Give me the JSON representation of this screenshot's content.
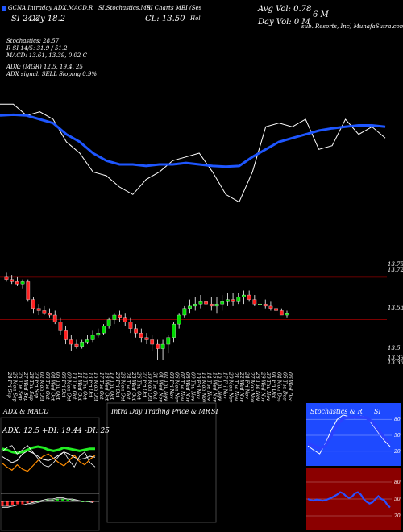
{
  "header": {
    "line1": [
      "GCNA Intraday ADX,MACD,R",
      "SI,Stochastics,MR",
      "SI Charts MBI",
      "(Ses",
      "Avg Vol: 0.78",
      "6  M"
    ],
    "line2": [
      "SI 24.7",
      "Day   18.2",
      "CL: 13.50",
      "Day Vol: 0  M"
    ],
    "company": "sub. Resorts, Inc) MunafaSutra.com",
    "ticker_suffix": "Hol"
  },
  "stats": {
    "stochastics": "Stochastics: 28.57",
    "r": "R         SI 14/5: 31.9 / 51.2",
    "macd": "MACD: 13.61,  13.39,  0.02  C",
    "adx": "ADX:                      (MGR) 12.5,  19.4,  25",
    "adx_signal": "ADX  signal: SELL  Sloping  0.9%"
  },
  "price_axis": [
    "13.75",
    "13.72",
    "13.53",
    "13.5",
    "13.39",
    "13.35"
  ],
  "chart_data": [
    {
      "type": "line",
      "name": "price-with-moving-average",
      "series": [
        {
          "values": [
            14.2,
            14.2,
            14.05,
            14.1,
            14.0,
            13.7,
            13.55,
            13.3,
            13.25,
            13.1,
            13.0,
            13.2,
            13.3,
            13.45,
            13.5,
            13.55,
            13.3,
            13.0,
            12.9,
            13.3,
            13.9,
            13.95,
            13.9,
            14.0,
            13.6,
            13.65,
            14.0,
            13.8,
            13.9,
            13.75
          ]
        },
        {
          "values": [
            14.05,
            14.06,
            14.05,
            14.0,
            13.95,
            13.8,
            13.7,
            13.55,
            13.45,
            13.4,
            13.4,
            13.38,
            13.4,
            13.4,
            13.42,
            13.4,
            13.38,
            13.37,
            13.38,
            13.5,
            13.6,
            13.7,
            13.75,
            13.8,
            13.85,
            13.88,
            13.9,
            13.92,
            13.92,
            13.9
          ]
        }
      ]
    },
    {
      "type": "candlestick",
      "name": "daily-candles",
      "categories": [
        "24 Fri Sep",
        "25 Mon Sep",
        "26 Tue Sep",
        "27 Wed Sep",
        "28 Thu Sep",
        "29 Fri Sep",
        "02 Mon Oct",
        "03 Tue Oct",
        "04 Wed Oct",
        "05 Thu Oct",
        "06 Fri Oct",
        "09 Mon Oct",
        "10 Tue Oct",
        "11 Wed Oct",
        "12 Thu Oct",
        "13 Fri Oct",
        "16 Mon Oct",
        "17 Tue Oct",
        "18 Wed Oct",
        "19 Thu Oct",
        "20 Fri Oct",
        "23 Mon Oct",
        "24 Tue Oct",
        "25 Wed Oct",
        "26 Thu Oct",
        "27 Fri Oct",
        "30 Mon Oct",
        "31 Tue Oct",
        "01 Wed Nov",
        "02 Thu Nov",
        "03 Fri Nov",
        "06 Mon Nov",
        "07 Tue Nov",
        "08 Wed Nov",
        "09 Thu Nov",
        "10 Fri Nov",
        "13 Mon Nov",
        "14 Tue Nov",
        "15 Wed Nov",
        "16 Thu Nov",
        "17 Fri Nov",
        "20 Mon Nov",
        "21 Tue Nov",
        "22 Wed Nov",
        "24 Fri Nov",
        "27 Mon Nov",
        "28 Tue Nov",
        "29 Wed Nov",
        "30 Thu Nov",
        "01 Fri Dec",
        "04 Mon Dec",
        "05 Tue Dec",
        "06 Wed Dec"
      ],
      "o": [
        13.72,
        13.71,
        13.7,
        13.69,
        13.7,
        13.62,
        13.58,
        13.57,
        13.56,
        13.55,
        13.52,
        13.48,
        13.44,
        13.42,
        13.41,
        13.43,
        13.44,
        13.46,
        13.47,
        13.5,
        13.53,
        13.55,
        13.54,
        13.52,
        13.49,
        13.47,
        13.45,
        13.44,
        13.42,
        13.4,
        13.42,
        13.45,
        13.51,
        13.55,
        13.58,
        13.59,
        13.6,
        13.61,
        13.6,
        13.59,
        13.6,
        13.61,
        13.62,
        13.61,
        13.63,
        13.64,
        13.62,
        13.6,
        13.6,
        13.59,
        13.58,
        13.57,
        13.55
      ],
      "h": [
        13.74,
        13.73,
        13.72,
        13.71,
        13.71,
        13.63,
        13.6,
        13.59,
        13.58,
        13.57,
        13.54,
        13.5,
        13.46,
        13.44,
        13.44,
        13.46,
        13.48,
        13.49,
        13.51,
        13.54,
        13.56,
        13.57,
        13.56,
        13.54,
        13.51,
        13.49,
        13.47,
        13.46,
        13.44,
        13.44,
        13.46,
        13.52,
        13.56,
        13.59,
        13.62,
        13.63,
        13.64,
        13.64,
        13.63,
        13.63,
        13.64,
        13.65,
        13.65,
        13.65,
        13.66,
        13.66,
        13.64,
        13.62,
        13.62,
        13.61,
        13.6,
        13.58,
        13.57
      ],
      "l": [
        13.7,
        13.69,
        13.68,
        13.67,
        13.61,
        13.56,
        13.55,
        13.55,
        13.54,
        13.51,
        13.46,
        13.42,
        13.39,
        13.4,
        13.4,
        13.42,
        13.43,
        13.45,
        13.46,
        13.49,
        13.51,
        13.52,
        13.5,
        13.47,
        13.45,
        13.43,
        13.42,
        13.39,
        13.35,
        13.35,
        13.38,
        13.43,
        13.49,
        13.54,
        13.56,
        13.57,
        13.58,
        13.58,
        13.57,
        13.56,
        13.57,
        13.59,
        13.59,
        13.6,
        13.6,
        13.61,
        13.59,
        13.58,
        13.58,
        13.57,
        13.56,
        13.55,
        13.54
      ],
      "c": [
        13.71,
        13.7,
        13.69,
        13.7,
        13.62,
        13.58,
        13.57,
        13.56,
        13.55,
        13.52,
        13.48,
        13.44,
        13.42,
        13.41,
        13.43,
        13.44,
        13.46,
        13.47,
        13.5,
        13.53,
        13.55,
        13.54,
        13.52,
        13.49,
        13.47,
        13.45,
        13.44,
        13.42,
        13.4,
        13.42,
        13.45,
        13.51,
        13.55,
        13.58,
        13.59,
        13.6,
        13.61,
        13.6,
        13.59,
        13.6,
        13.61,
        13.62,
        13.61,
        13.63,
        13.64,
        13.62,
        13.6,
        13.6,
        13.59,
        13.58,
        13.57,
        13.55,
        13.56
      ]
    },
    {
      "type": "line",
      "title": "ADX  & MACD",
      "subtitle": "ADX: 12.5  +DI: 19.44  -DI: 25",
      "series": [
        {
          "values": [
            18,
            15,
            12,
            14,
            20,
            23,
            21,
            18,
            15,
            14,
            16,
            19,
            22,
            20,
            17,
            15,
            16,
            18,
            17
          ]
        },
        {
          "values": [
            25,
            24,
            22,
            21,
            22,
            24,
            26,
            27,
            26,
            24,
            23,
            24,
            26,
            25,
            24,
            23,
            24,
            25,
            25
          ]
        },
        {
          "values": [
            12,
            8,
            5,
            10,
            6,
            4,
            9,
            14,
            18,
            20,
            16,
            12,
            9,
            14,
            19,
            13,
            10,
            15,
            19
          ]
        },
        {
          "values": [
            22,
            26,
            28,
            20,
            24,
            28,
            22,
            16,
            10,
            8,
            12,
            18,
            22,
            14,
            8,
            18,
            22,
            12,
            8
          ]
        }
      ]
    },
    {
      "type": "line",
      "name": "macd",
      "series": [
        {
          "values": [
            -5,
            -5,
            -4,
            -3,
            -3,
            -2,
            -1,
            0,
            1,
            2,
            2,
            3,
            3,
            2,
            2,
            1,
            0,
            0,
            -1
          ]
        },
        {
          "values": [
            -4,
            -4,
            -4,
            -3,
            -3,
            -2,
            -2,
            -1,
            0,
            1,
            1,
            2,
            2,
            2,
            1,
            1,
            0,
            0,
            -1
          ]
        }
      ]
    },
    {
      "type": "area",
      "title": "Intra  Day Trading Price  & MR",
      "title_suffix": "SI"
    },
    {
      "type": "line",
      "title": "Stochastics & R",
      "title_suffix": "SI",
      "yticks": [
        "80",
        "50",
        "20"
      ],
      "series": [
        {
          "values": [
            30,
            22,
            15,
            35,
            60,
            80,
            88,
            85,
            82,
            86,
            84,
            70,
            55,
            40,
            29
          ]
        },
        {
          "values": [
            35,
            30,
            25,
            30,
            50,
            70,
            82,
            84,
            84,
            84,
            83,
            75,
            60,
            45,
            35
          ]
        }
      ]
    },
    {
      "type": "line",
      "name": "rsi",
      "yticks": [
        "80",
        "50",
        "20"
      ],
      "series": [
        {
          "values": [
            50,
            48,
            47,
            49,
            48,
            47,
            48,
            50,
            52,
            55,
            58,
            62,
            60,
            55,
            52,
            54,
            60,
            62,
            58,
            50,
            45,
            42,
            44,
            50,
            55,
            50,
            48,
            40,
            35
          ]
        }
      ]
    }
  ],
  "colors": {
    "background": "#000000",
    "price_line": "#ffffff",
    "ma_line": "#1e56ff",
    "up_candle": "#00dd00",
    "down_candle": "#ff2222",
    "grid_red": "#8b0000",
    "stoch_blue": "#1e4aff",
    "rsi_bg": "#8b0000",
    "adx_green": "#22ee22",
    "adx_orange": "#ff8c00"
  }
}
